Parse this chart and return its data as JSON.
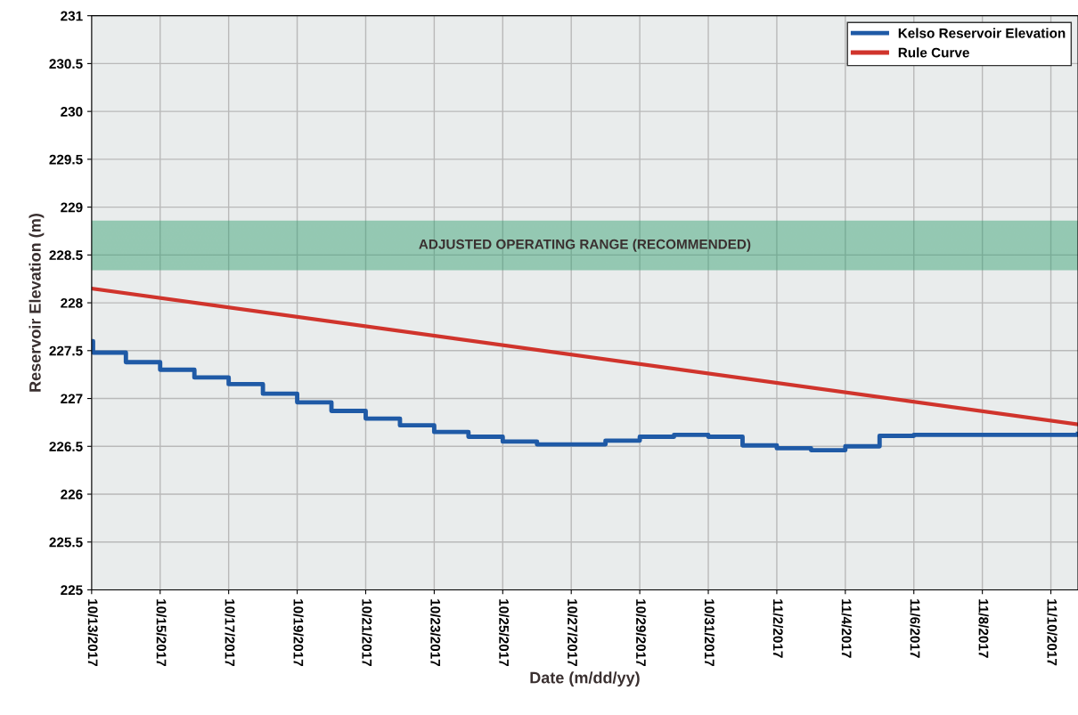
{
  "chart_data": {
    "type": "line",
    "xlabel": "Date (m/dd/yy)",
    "ylabel": "Reservoir Elevation (m)",
    "xlim": [
      "2017-10-13",
      "2017-11-10T19:00"
    ],
    "ylim": [
      225,
      231
    ],
    "yticks": [
      225,
      225.5,
      226,
      226.5,
      227,
      227.5,
      228,
      228.5,
      229,
      229.5,
      230,
      230.5,
      231
    ],
    "xticks": [
      {
        "value": "2017-10-13",
        "label": "10/13/2017"
      },
      {
        "value": "2017-10-15",
        "label": "10/15/2017"
      },
      {
        "value": "2017-10-17",
        "label": "10/17/2017"
      },
      {
        "value": "2017-10-19",
        "label": "10/19/2017"
      },
      {
        "value": "2017-10-21",
        "label": "10/21/2017"
      },
      {
        "value": "2017-10-23",
        "label": "10/23/2017"
      },
      {
        "value": "2017-10-25",
        "label": "10/25/2017"
      },
      {
        "value": "2017-10-27",
        "label": "10/27/2017"
      },
      {
        "value": "2017-10-29",
        "label": "10/29/2017"
      },
      {
        "value": "2017-10-31",
        "label": "10/31/2017"
      },
      {
        "value": "2017-11-02",
        "label": "11/2/2017"
      },
      {
        "value": "2017-11-04",
        "label": "11/4/2017"
      },
      {
        "value": "2017-11-06",
        "label": "11/6/2017"
      },
      {
        "value": "2017-11-08",
        "label": "11/8/2017"
      },
      {
        "value": "2017-11-10",
        "label": "11/10/2017"
      }
    ],
    "grid": true,
    "legend": "top right",
    "series": [
      {
        "name": "Kelso Reservoir Elevation",
        "type": "step",
        "color": "#1f5aa6",
        "x": [
          "2017-10-13T00:00",
          "2017-10-13T01:00",
          "2017-10-14",
          "2017-10-15",
          "2017-10-16",
          "2017-10-17",
          "2017-10-18",
          "2017-10-19",
          "2017-10-20",
          "2017-10-21",
          "2017-10-22",
          "2017-10-23",
          "2017-10-24",
          "2017-10-25",
          "2017-10-26",
          "2017-10-28",
          "2017-10-29",
          "2017-10-30",
          "2017-10-31",
          "2017-11-01",
          "2017-11-02",
          "2017-11-03",
          "2017-11-04",
          "2017-11-05",
          "2017-11-06",
          "2017-11-10T19:00"
        ],
        "values": [
          227.6,
          227.48,
          227.38,
          227.3,
          227.22,
          227.15,
          227.05,
          226.96,
          226.87,
          226.79,
          226.72,
          226.65,
          226.6,
          226.55,
          226.52,
          226.56,
          226.6,
          226.62,
          226.6,
          226.51,
          226.48,
          226.46,
          226.5,
          226.61,
          226.62,
          226.63
        ]
      },
      {
        "name": "Rule Curve",
        "color": "#d0342c",
        "x": [
          "2017-10-13",
          "2017-11-10T19:00"
        ],
        "values": [
          228.15,
          226.73
        ]
      }
    ],
    "bands": [
      {
        "axis": "y",
        "from": 228.35,
        "to": 228.85,
        "label": "ADJUSTED OPERATING RANGE (RECOMMENDED)",
        "color": "#2e9e6e"
      }
    ]
  }
}
